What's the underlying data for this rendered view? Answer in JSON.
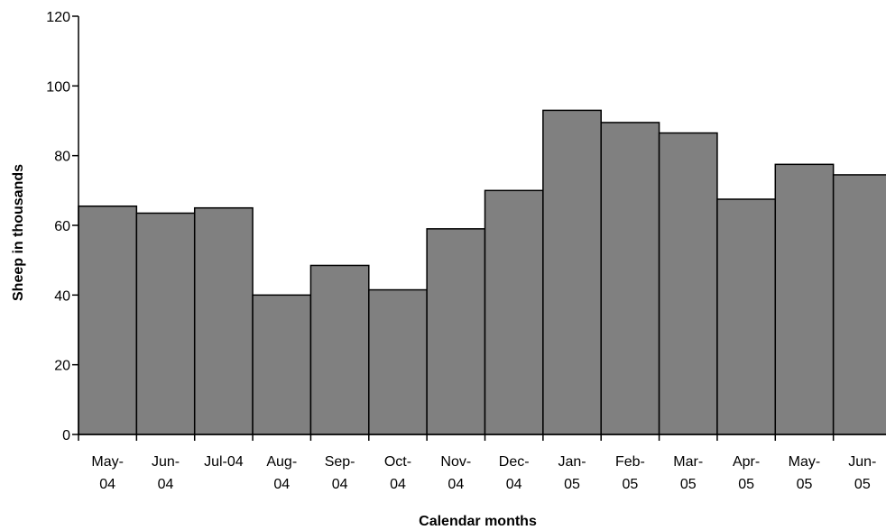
{
  "chart_data": {
    "type": "bar",
    "categories": [
      [
        "May-",
        "04"
      ],
      [
        "Jun-",
        "04"
      ],
      [
        "Jul-04"
      ],
      [
        "Aug-",
        "04"
      ],
      [
        "Sep-",
        "04"
      ],
      [
        "Oct-",
        "04"
      ],
      [
        "Nov-",
        "04"
      ],
      [
        "Dec-",
        "04"
      ],
      [
        "Jan-",
        "05"
      ],
      [
        "Feb-",
        "05"
      ],
      [
        "Mar-",
        "05"
      ],
      [
        "Apr-",
        "05"
      ],
      [
        "May-",
        "05"
      ],
      [
        "Jun-",
        "05"
      ]
    ],
    "values": [
      65.5,
      63.5,
      65,
      40,
      48.5,
      41.5,
      59,
      70,
      93,
      89.5,
      86.5,
      67.5,
      77.5,
      74.5
    ],
    "title": "",
    "xlabel": "Calendar months",
    "ylabel": "Sheep in thousands",
    "ylim": [
      0,
      120
    ],
    "yticks": [
      "0",
      "20",
      "40",
      "60",
      "80",
      "100",
      "120"
    ],
    "bar_color": "#808080",
    "bar_gap": 0,
    "grid": false,
    "legend": "none"
  }
}
